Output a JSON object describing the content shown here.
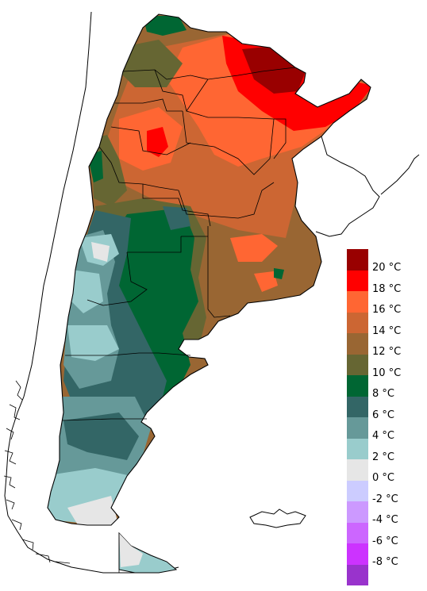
{
  "legend": {
    "entries": [
      {
        "label": "20 °C",
        "color": "#990000"
      },
      {
        "label": "18 °C",
        "color": "#ff0000"
      },
      {
        "label": "16 °C",
        "color": "#ff6633"
      },
      {
        "label": "14 °C",
        "color": "#cc6633"
      },
      {
        "label": "12 °C",
        "color": "#996633"
      },
      {
        "label": "10 °C",
        "color": "#666633"
      },
      {
        "label": "8 °C",
        "color": "#006633"
      },
      {
        "label": "6 °C",
        "color": "#336666"
      },
      {
        "label": "4 °C",
        "color": "#669999"
      },
      {
        "label": "2 °C",
        "color": "#99cccc"
      },
      {
        "label": "0 °C",
        "color": "#e6e6e6"
      },
      {
        "label": "-2 °C",
        "color": "#ccccff"
      },
      {
        "label": "-4 °C",
        "color": "#cc99ff"
      },
      {
        "label": "-6 °C",
        "color": "#cc66ff"
      },
      {
        "label": "-8 °C",
        "color": "#cc33ff"
      },
      {
        "label": "",
        "color": "#9933cc"
      }
    ]
  }
}
